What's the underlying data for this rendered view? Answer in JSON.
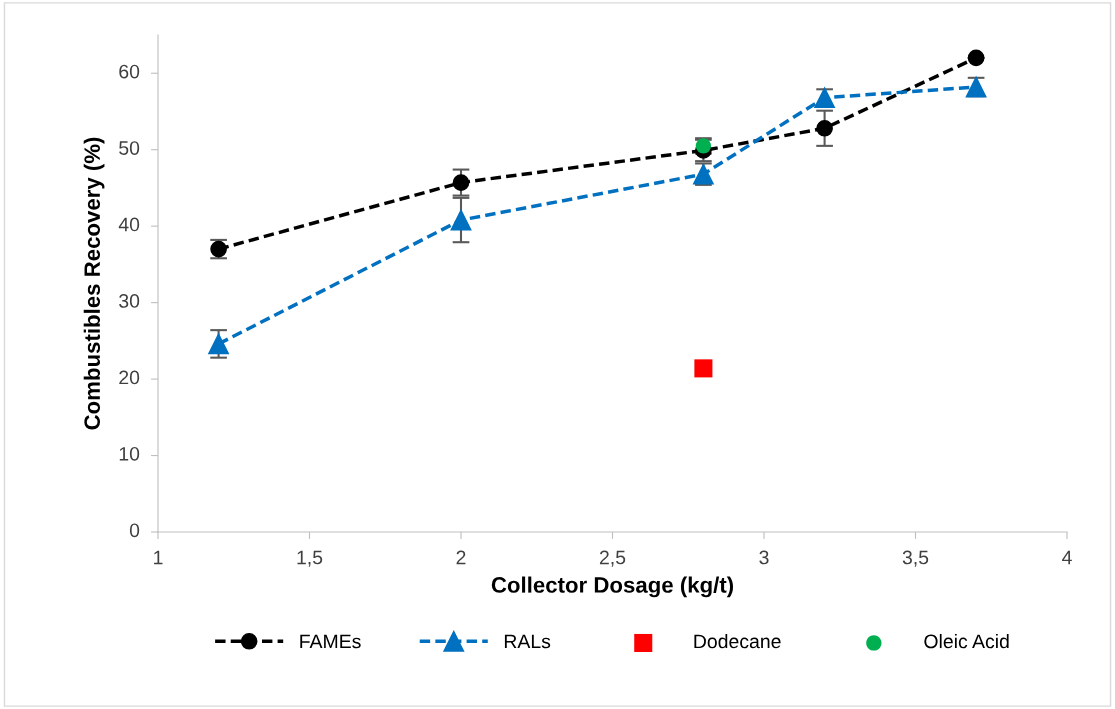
{
  "chart_data": {
    "type": "line",
    "xlabel": "Collector Dosage (kg/t)",
    "ylabel": "Combustibles Recovery (%)",
    "xlim": [
      1,
      4
    ],
    "xticks": [
      1,
      {
        "value": 1.5,
        "label": "1,5"
      },
      2,
      {
        "value": 2.5,
        "label": "2,5"
      },
      3,
      {
        "value": 3.5,
        "label": "3,5"
      },
      4
    ],
    "ylim": [
      0,
      65
    ],
    "yticks": [
      0,
      10,
      20,
      30,
      40,
      50,
      60
    ],
    "grid": false,
    "legend": "bottom",
    "series": [
      {
        "name": "FAMEs",
        "color": "#000000",
        "marker": "circle",
        "line_style": "dashed",
        "x": [
          1.2,
          2,
          2.8,
          3.2,
          3.7
        ],
        "values": [
          37.0,
          45.7,
          49.9,
          52.8,
          62.0
        ],
        "errors": [
          1.2,
          1.7,
          1.4,
          2.3,
          null
        ]
      },
      {
        "name": "RALs",
        "color": "#0070c0",
        "marker": "triangle",
        "line_style": "dashed",
        "x": [
          1.2,
          2,
          2.8,
          3.2,
          3.7
        ],
        "values": [
          24.6,
          40.8,
          46.8,
          56.8,
          58.2
        ],
        "errors": [
          1.8,
          2.9,
          1.4,
          1.1,
          1.2
        ]
      },
      {
        "name": "Dodecane",
        "type": "scatter",
        "color": "#ff0000",
        "marker": "square",
        "x": [
          2.8
        ],
        "values": [
          21.4
        ]
      },
      {
        "name": "Oleic Acid",
        "type": "scatter",
        "color": "#00b050",
        "marker": "circle",
        "x": [
          2.8
        ],
        "values": [
          50.5
        ],
        "errors": [
          1.0
        ]
      }
    ]
  }
}
